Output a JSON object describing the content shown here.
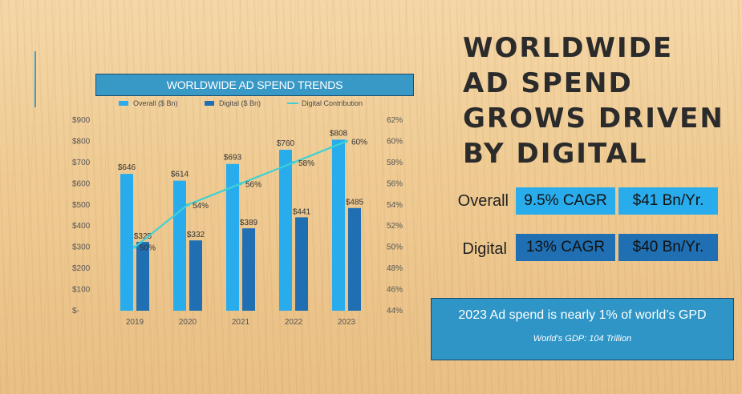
{
  "chart_title": "WORLDWIDE AD SPEND TRENDS",
  "headline": "WORLDWIDE AD SPEND GROWS DRIVEN BY DIGITAL",
  "stats": {
    "overall_label": "Overall",
    "overall_cagr": "9.5% CAGR",
    "overall_abs": "$41 Bn/Yr.",
    "digital_label": "Digital",
    "digital_cagr": "13% CAGR",
    "digital_abs": "$40 Bn/Yr."
  },
  "note": {
    "title": "2023 Ad spend is nearly 1% of world’s GPD",
    "subtitle": "World’s GDP: 104 Trillion"
  },
  "colors": {
    "overall": "#29acec",
    "digital": "#1f6fb2",
    "contribution": "#3ed1d3"
  },
  "chart_data": {
    "type": "bar",
    "categories": [
      "2019",
      "2020",
      "2021",
      "2022",
      "2023"
    ],
    "series": [
      {
        "name": "Overall ($ Bn)",
        "values": [
          646,
          614,
          693,
          760,
          808
        ],
        "labels": [
          "$646",
          "$614",
          "$693",
          "$760",
          "$808"
        ]
      },
      {
        "name": "Digital ($ Bn)",
        "values": [
          325,
          332,
          389,
          441,
          485
        ],
        "labels": [
          "$325",
          "$332",
          "$389",
          "$441",
          "$485"
        ]
      }
    ],
    "line_series": {
      "name": "Digital Contribution",
      "values": [
        50,
        54,
        56,
        58,
        60
      ],
      "labels": [
        "50%",
        "54%",
        "56%",
        "58%",
        "60%"
      ],
      "axis": "secondary"
    },
    "ylim": [
      0,
      900
    ],
    "y_ticks": [
      "$-",
      "$100",
      "$200",
      "$300",
      "$400",
      "$500",
      "$600",
      "$700",
      "$800",
      "$900"
    ],
    "y2lim": [
      44,
      62
    ],
    "y2_ticks": [
      "44%",
      "46%",
      "48%",
      "50%",
      "52%",
      "54%",
      "56%",
      "58%",
      "60%",
      "62%"
    ],
    "legend_position": "top",
    "grid": false
  }
}
